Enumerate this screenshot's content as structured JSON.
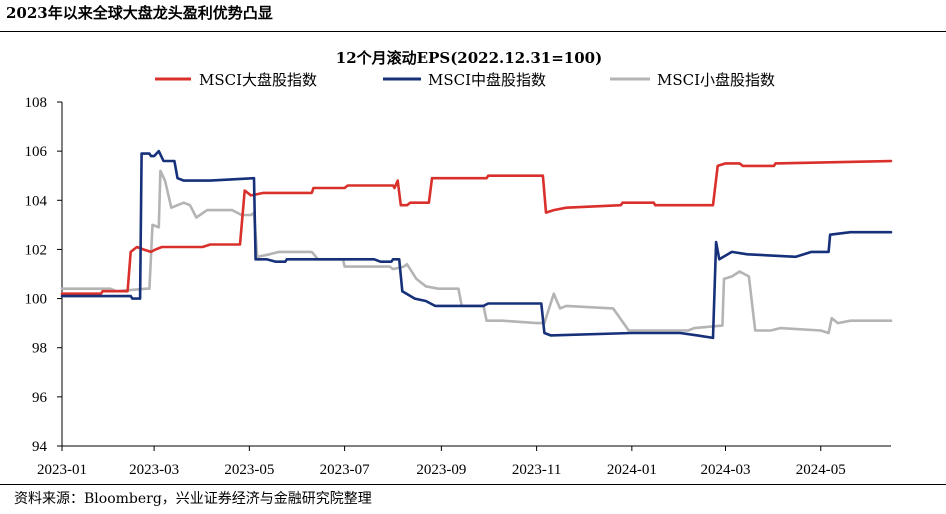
{
  "page": {
    "header_title": "2023年以来全球大盘龙头盈利优势凸显",
    "source_note": "资料来源：Bloomberg，兴业证券经济与金融研究院整理"
  },
  "chart_data": {
    "type": "line",
    "title": "12个月滚动EPS(2022.12.31=100)",
    "xlabel": "",
    "ylabel": "",
    "ylim": [
      94,
      108
    ],
    "yticks": [
      94,
      96,
      98,
      100,
      102,
      104,
      106,
      108
    ],
    "xlim": [
      "2023-01-01",
      "2024-06-15"
    ],
    "xtick_labels": [
      "2023-01",
      "2023-03",
      "2023-05",
      "2023-07",
      "2023-09",
      "2023-11",
      "2024-01",
      "2024-03",
      "2024-05"
    ],
    "xtick_dates": [
      "2023-01-01",
      "2023-03-01",
      "2023-05-01",
      "2023-07-01",
      "2023-09-01",
      "2023-11-01",
      "2024-01-01",
      "2024-03-01",
      "2024-05-01"
    ],
    "grid": false,
    "legend_position": "top",
    "series": [
      {
        "name": "MSCI大盘股指数",
        "color": "#d9302b",
        "points": [
          [
            "2023-01-01",
            100.2
          ],
          [
            "2023-01-26",
            100.2
          ],
          [
            "2023-01-27",
            100.3
          ],
          [
            "2023-02-12",
            100.3
          ],
          [
            "2023-02-14",
            101.9
          ],
          [
            "2023-02-18",
            102.1
          ],
          [
            "2023-02-22",
            102.0
          ],
          [
            "2023-02-27",
            101.9
          ],
          [
            "2023-03-02",
            102.0
          ],
          [
            "2023-03-06",
            102.1
          ],
          [
            "2023-04-01",
            102.1
          ],
          [
            "2023-04-06",
            102.2
          ],
          [
            "2023-04-25",
            102.2
          ],
          [
            "2023-04-28",
            104.4
          ],
          [
            "2023-05-02",
            104.2
          ],
          [
            "2023-05-10",
            104.3
          ],
          [
            "2023-06-10",
            104.3
          ],
          [
            "2023-06-11",
            104.5
          ],
          [
            "2023-07-01",
            104.5
          ],
          [
            "2023-07-03",
            104.6
          ],
          [
            "2023-08-01",
            104.6
          ],
          [
            "2023-08-02",
            104.5
          ],
          [
            "2023-08-04",
            104.8
          ],
          [
            "2023-08-06",
            103.8
          ],
          [
            "2023-08-10",
            103.8
          ],
          [
            "2023-08-12",
            103.9
          ],
          [
            "2023-08-20",
            103.9
          ],
          [
            "2023-08-24",
            103.9
          ],
          [
            "2023-08-26",
            104.9
          ],
          [
            "2023-09-30",
            104.9
          ],
          [
            "2023-10-01",
            105.0
          ],
          [
            "2023-11-05",
            105.0
          ],
          [
            "2023-11-07",
            103.5
          ],
          [
            "2023-11-12",
            103.6
          ],
          [
            "2023-11-20",
            103.7
          ],
          [
            "2023-12-25",
            103.8
          ],
          [
            "2023-12-26",
            103.9
          ],
          [
            "2024-01-15",
            103.9
          ],
          [
            "2024-01-16",
            103.8
          ],
          [
            "2024-02-22",
            103.8
          ],
          [
            "2024-02-25",
            105.4
          ],
          [
            "2024-03-01",
            105.5
          ],
          [
            "2024-03-10",
            105.5
          ],
          [
            "2024-03-12",
            105.4
          ],
          [
            "2024-04-01",
            105.4
          ],
          [
            "2024-04-02",
            105.5
          ],
          [
            "2024-06-15",
            105.6
          ]
        ]
      },
      {
        "name": "MSCI中盘股指数",
        "color": "#16307a",
        "points": [
          [
            "2023-01-01",
            100.1
          ],
          [
            "2023-02-14",
            100.1
          ],
          [
            "2023-02-15",
            100.0
          ],
          [
            "2023-02-20",
            100.0
          ],
          [
            "2023-02-21",
            105.9
          ],
          [
            "2023-02-26",
            105.9
          ],
          [
            "2023-02-27",
            105.8
          ],
          [
            "2023-03-01",
            105.8
          ],
          [
            "2023-03-04",
            106.0
          ],
          [
            "2023-03-07",
            105.6
          ],
          [
            "2023-03-14",
            105.6
          ],
          [
            "2023-03-16",
            104.9
          ],
          [
            "2023-03-20",
            104.8
          ],
          [
            "2023-04-01",
            104.8
          ],
          [
            "2023-04-06",
            104.8
          ],
          [
            "2023-05-04",
            104.9
          ],
          [
            "2023-05-05",
            101.6
          ],
          [
            "2023-05-12",
            101.6
          ],
          [
            "2023-05-18",
            101.5
          ],
          [
            "2023-05-24",
            101.5
          ],
          [
            "2023-05-25",
            101.6
          ],
          [
            "2023-07-20",
            101.6
          ],
          [
            "2023-07-24",
            101.5
          ],
          [
            "2023-07-31",
            101.5
          ],
          [
            "2023-08-01",
            101.6
          ],
          [
            "2023-08-05",
            101.6
          ],
          [
            "2023-08-07",
            100.3
          ],
          [
            "2023-08-15",
            100.0
          ],
          [
            "2023-08-22",
            99.9
          ],
          [
            "2023-08-28",
            99.7
          ],
          [
            "2023-09-10",
            99.7
          ],
          [
            "2023-09-28",
            99.7
          ],
          [
            "2023-10-01",
            99.8
          ],
          [
            "2023-11-01",
            99.8
          ],
          [
            "2023-11-04",
            99.8
          ],
          [
            "2023-11-06",
            98.6
          ],
          [
            "2023-11-10",
            98.5
          ],
          [
            "2024-01-01",
            98.6
          ],
          [
            "2024-02-01",
            98.6
          ],
          [
            "2024-02-12",
            98.5
          ],
          [
            "2024-02-22",
            98.4
          ],
          [
            "2024-02-24",
            102.3
          ],
          [
            "2024-02-26",
            101.6
          ],
          [
            "2024-03-05",
            101.9
          ],
          [
            "2024-03-15",
            101.8
          ],
          [
            "2024-04-15",
            101.7
          ],
          [
            "2024-04-25",
            101.9
          ],
          [
            "2024-05-06",
            101.9
          ],
          [
            "2024-05-07",
            102.6
          ],
          [
            "2024-05-20",
            102.7
          ],
          [
            "2024-06-15",
            102.7
          ]
        ]
      },
      {
        "name": "MSCI小盘股指数",
        "color": "#b4b4b4",
        "points": [
          [
            "2023-01-01",
            100.4
          ],
          [
            "2023-02-01",
            100.4
          ],
          [
            "2023-02-05",
            100.3
          ],
          [
            "2023-02-24",
            100.4
          ],
          [
            "2023-02-26",
            100.4
          ],
          [
            "2023-02-28",
            103.0
          ],
          [
            "2023-03-04",
            102.9
          ],
          [
            "2023-03-05",
            105.2
          ],
          [
            "2023-03-08",
            104.8
          ],
          [
            "2023-03-12",
            103.7
          ],
          [
            "2023-03-20",
            103.9
          ],
          [
            "2023-03-24",
            103.8
          ],
          [
            "2023-03-28",
            103.3
          ],
          [
            "2023-04-04",
            103.6
          ],
          [
            "2023-04-20",
            103.6
          ],
          [
            "2023-04-26",
            103.4
          ],
          [
            "2023-05-02",
            103.4
          ],
          [
            "2023-05-04",
            103.5
          ],
          [
            "2023-05-06",
            101.7
          ],
          [
            "2023-05-14",
            101.8
          ],
          [
            "2023-05-20",
            101.9
          ],
          [
            "2023-06-10",
            101.9
          ],
          [
            "2023-06-14",
            101.6
          ],
          [
            "2023-06-30",
            101.6
          ],
          [
            "2023-07-01",
            101.3
          ],
          [
            "2023-07-30",
            101.3
          ],
          [
            "2023-08-01",
            101.2
          ],
          [
            "2023-08-08",
            101.3
          ],
          [
            "2023-08-10",
            101.4
          ],
          [
            "2023-08-16",
            100.8
          ],
          [
            "2023-08-22",
            100.5
          ],
          [
            "2023-08-30",
            100.4
          ],
          [
            "2023-09-12",
            100.4
          ],
          [
            "2023-09-14",
            99.7
          ],
          [
            "2023-09-28",
            99.7
          ],
          [
            "2023-09-30",
            99.1
          ],
          [
            "2023-10-10",
            99.1
          ],
          [
            "2023-11-01",
            99.0
          ],
          [
            "2023-11-06",
            99.0
          ],
          [
            "2023-11-08",
            99.4
          ],
          [
            "2023-11-12",
            100.2
          ],
          [
            "2023-11-16",
            99.6
          ],
          [
            "2023-11-20",
            99.7
          ],
          [
            "2023-12-20",
            99.6
          ],
          [
            "2023-12-30",
            98.7
          ],
          [
            "2024-02-06",
            98.7
          ],
          [
            "2024-02-10",
            98.8
          ],
          [
            "2024-02-28",
            98.9
          ],
          [
            "2024-02-29",
            100.8
          ],
          [
            "2024-03-05",
            100.9
          ],
          [
            "2024-03-10",
            101.1
          ],
          [
            "2024-03-16",
            100.9
          ],
          [
            "2024-03-20",
            98.7
          ],
          [
            "2024-03-30",
            98.7
          ],
          [
            "2024-04-05",
            98.8
          ],
          [
            "2024-05-01",
            98.7
          ],
          [
            "2024-05-06",
            98.6
          ],
          [
            "2024-05-08",
            99.2
          ],
          [
            "2024-05-12",
            99.0
          ],
          [
            "2024-05-20",
            99.1
          ],
          [
            "2024-06-15",
            99.1
          ]
        ]
      }
    ]
  }
}
